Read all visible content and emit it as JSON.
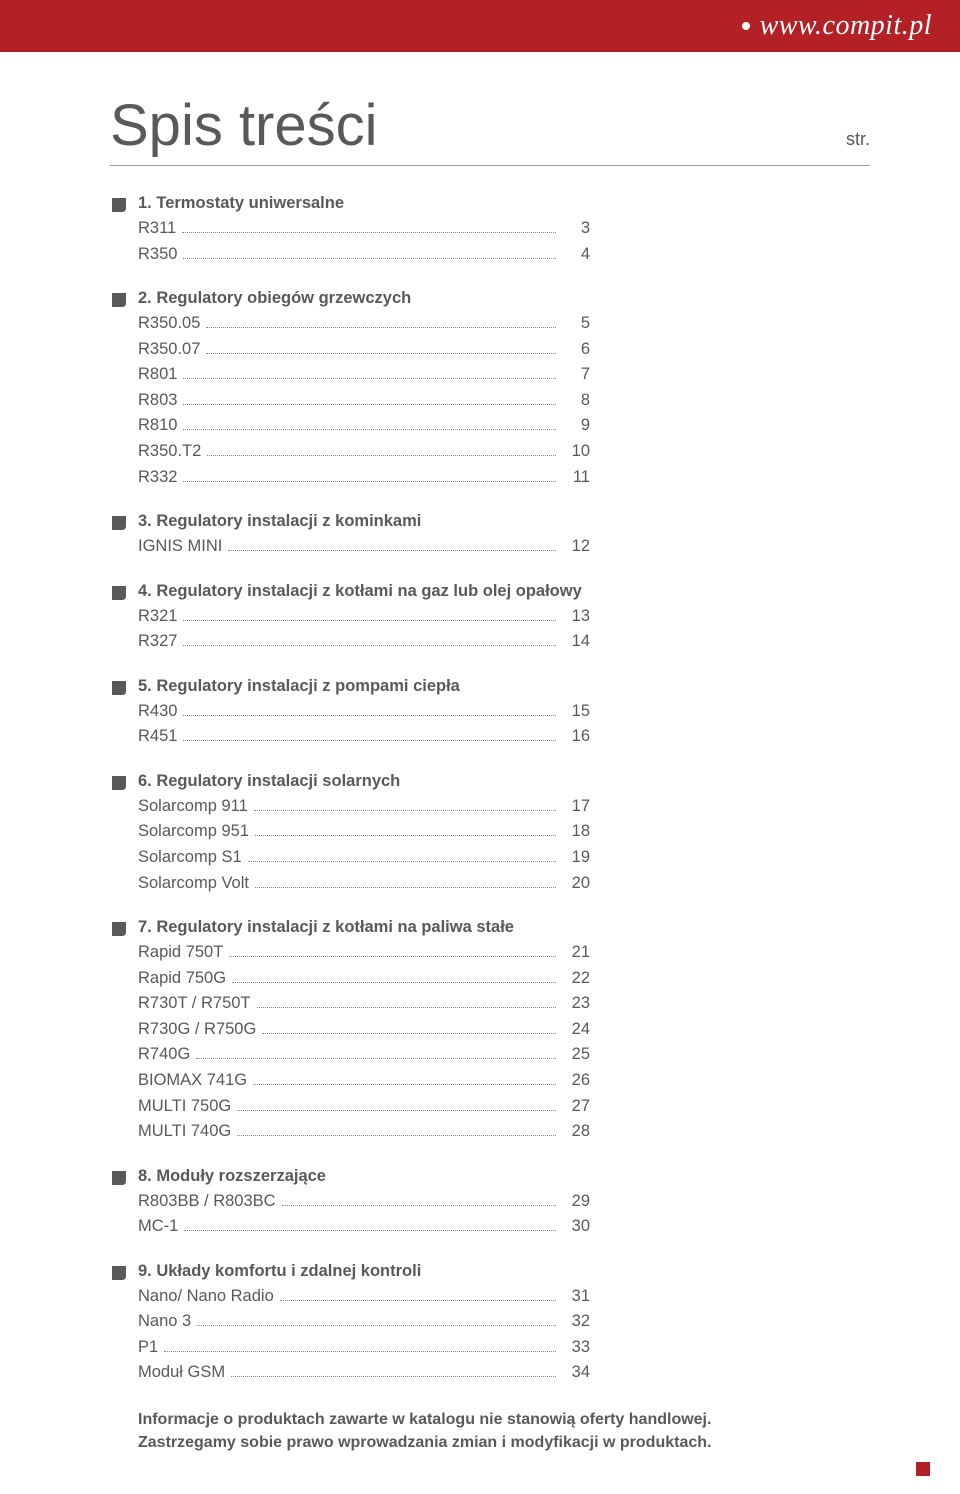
{
  "header_url": "www.compit.pl",
  "title": "Spis treści",
  "str_label": "str.",
  "bullet_color": "#595959",
  "sections": [
    {
      "title": "1. Termostaty uniwersalne",
      "entries": [
        {
          "label": "R311",
          "page": "3"
        },
        {
          "label": "R350",
          "page": "4"
        }
      ]
    },
    {
      "title": "2. Regulatory obiegów grzewczych",
      "entries": [
        {
          "label": "R350.05",
          "page": "5"
        },
        {
          "label": "R350.07",
          "page": "6"
        },
        {
          "label": "R801",
          "page": "7"
        },
        {
          "label": "R803",
          "page": "8"
        },
        {
          "label": "R810",
          "page": "9"
        },
        {
          "label": "R350.T2",
          "page": "10"
        },
        {
          "label": "R332",
          "page": "11"
        }
      ]
    },
    {
      "title": "3. Regulatory instalacji z kominkami",
      "entries": [
        {
          "label": "IGNIS MINI",
          "page": "12"
        }
      ]
    },
    {
      "title": "4. Regulatory instalacji z kotłami na gaz lub olej opałowy",
      "entries": [
        {
          "label": "R321",
          "page": "13"
        },
        {
          "label": "R327",
          "page": "14"
        }
      ]
    },
    {
      "title": "5. Regulatory instalacji z pompami ciepła",
      "entries": [
        {
          "label": "R430",
          "page": "15"
        },
        {
          "label": "R451",
          "page": "16"
        }
      ]
    },
    {
      "title": "6. Regulatory instalacji solarnych",
      "entries": [
        {
          "label": "Solarcomp 911",
          "page": "17"
        },
        {
          "label": "Solarcomp 951",
          "page": "18"
        },
        {
          "label": "Solarcomp S1",
          "page": "19"
        },
        {
          "label": "Solarcomp Volt",
          "page": "20"
        }
      ]
    },
    {
      "title": "7. Regulatory instalacji z kotłami na paliwa stałe",
      "entries": [
        {
          "label": "Rapid 750T",
          "page": "21"
        },
        {
          "label": "Rapid 750G",
          "page": "22"
        },
        {
          "label": "R730T / R750T",
          "page": "23"
        },
        {
          "label": "R730G / R750G",
          "page": "24"
        },
        {
          "label": "R740G",
          "page": "25"
        },
        {
          "label": "BIOMAX 741G",
          "page": "26"
        },
        {
          "label": "MULTI 750G",
          "page": "27"
        },
        {
          "label": "MULTI 740G",
          "page": "28"
        }
      ]
    },
    {
      "title": "8. Moduły rozszerzające",
      "entries": [
        {
          "label": "R803BB / R803BC",
          "page": "29"
        },
        {
          "label": "MC-1",
          "page": "30"
        }
      ]
    },
    {
      "title": "9. Układy komfortu i zdalnej kontroli",
      "entries": [
        {
          "label": "Nano/ Nano Radio",
          "page": "31"
        },
        {
          "label": "Nano 3",
          "page": "32"
        },
        {
          "label": "P1",
          "page": "33"
        },
        {
          "label": "Moduł GSM",
          "page": "34"
        }
      ]
    }
  ],
  "disclaimer_line1": "Informacje o produktach zawarte w katalogu nie stanowią oferty handlowej.",
  "disclaimer_line2": "Zastrzegamy sobie prawo wprowadzania zmian i modyfikacji w produktach."
}
